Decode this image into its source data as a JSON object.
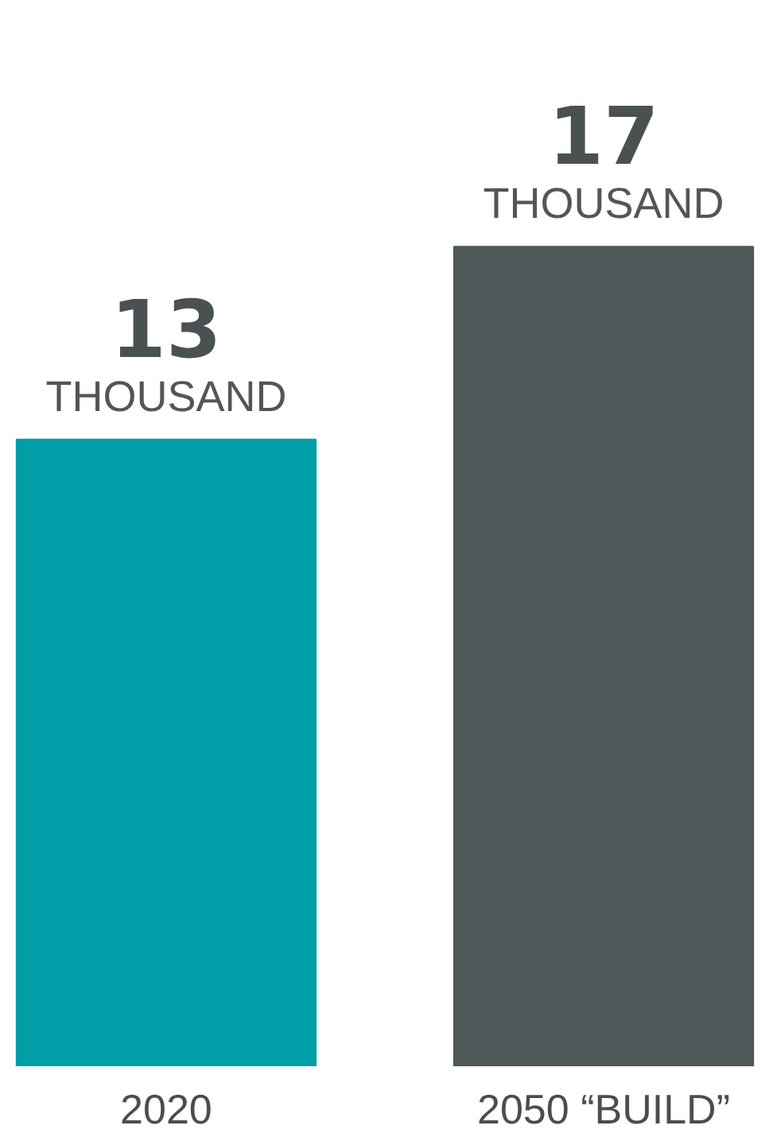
{
  "chart_data": {
    "type": "bar",
    "categories": [
      "2020",
      "2050 “BUILD”"
    ],
    "values": [
      13,
      17
    ],
    "colors": [
      "#009ea7",
      "#4f5758"
    ],
    "data_labels": true,
    "grid": false,
    "annotations": [
      {
        "text": "THOUSAND",
        "x": "2020",
        "y": 13
      },
      {
        "text": "THOUSAND",
        "x": "2050 “BUILD”",
        "y": 17
      }
    ]
  }
}
